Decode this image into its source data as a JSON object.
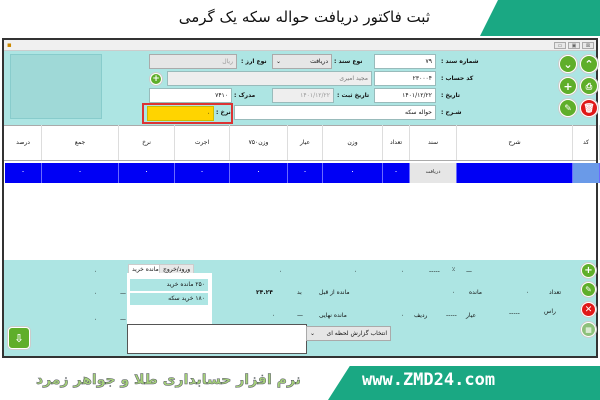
{
  "banner": {
    "title": "ثبت فاکتور دریافت حواله سکه یک گرمی"
  },
  "form": {
    "doc_no_label": "شماره سند :",
    "doc_no": "۷۹",
    "doc_type_label": "نوع سند :",
    "doc_type": "دریافت",
    "currency_label": "نوع ارز :",
    "currency": "ریال",
    "account_label": "کد حساب :",
    "account": "۲۳۰۰۰۴",
    "account_name": "مجید امیری",
    "date_label": "تاریخ :",
    "date": "۱۴۰۱/۱۲/۲۲",
    "reg_date_label": "تاریخ ثبت :",
    "reg_date": "۱۴۰۱/۱۲/۲۲",
    "ref_label": "مدرک :",
    "ref": "۷۴۱۰",
    "desc_label": "شـرح :",
    "desc": "حواله سکه",
    "rate_label": "نرخ :",
    "rate": "۰"
  },
  "grid": {
    "columns": [
      "کد",
      "شرح",
      "سند",
      "تعداد",
      "وزن",
      "عیار",
      "وزن۷۵۰",
      "اجرت",
      "نرخ",
      "جمع",
      "درصد"
    ],
    "row": {
      "code": "",
      "desc": "",
      "doc": "دریافت",
      "count": "۰",
      "weight": "۰",
      "purity": "۰",
      "w750": "۰",
      "wage": "۰",
      "rate": "۰",
      "total": "۰",
      "percent": "۰"
    }
  },
  "bottom": {
    "tabs": [
      "مانده خرید",
      "ورود/خروج"
    ],
    "list": [
      "۲۵۰ مانده خرید",
      "۱۸۰ خرید سکه"
    ],
    "count_label": "تعداد",
    "remain_label": "مانده",
    "prev_remain_label": "مانده از قبل",
    "bed_label": "بد",
    "prev_value": "۲۴.۲۴",
    "ras_label": "راس",
    "purity_label": "عیار",
    "row_label": "ردیف",
    "final_remain_label": "مانده نهایی",
    "zero": "۰",
    "dash": "—",
    "dashes": "-----",
    "pct": "٪",
    "report_select": "انتخاب گزارش لحظه ای"
  },
  "footer": {
    "tagline": "نرم افزار حسابداری طلا و جواهر زمرد",
    "url": "www.ZMD24.com"
  }
}
